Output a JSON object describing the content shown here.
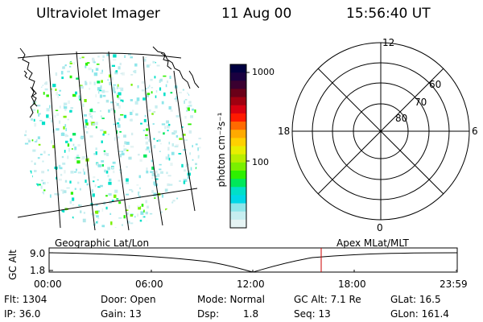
{
  "header": {
    "instrument": "Ultraviolet Imager",
    "date": "11 Aug 00",
    "time": "15:56:40 UT"
  },
  "colorbar": {
    "unit_label": "photon cm⁻²s⁻¹",
    "ticks": [
      "1000",
      "100"
    ],
    "colors": [
      "#000040",
      "#1a0040",
      "#3a0030",
      "#6a0018",
      "#a00010",
      "#d80010",
      "#ff1a00",
      "#ff6a00",
      "#ffaa00",
      "#ffd000",
      "#e8ee00",
      "#b8ee00",
      "#7af000",
      "#2ef000",
      "#00e85a",
      "#00e0c8",
      "#00d8e8",
      "#8ee6ea",
      "#c6eef0",
      "#e6f4f4"
    ]
  },
  "polar": {
    "mlt_labels": [
      "12",
      "18",
      "6",
      "0"
    ],
    "lat_labels": [
      "60",
      "70",
      "80"
    ]
  },
  "timeline": {
    "axis_title": "GC Alt",
    "y_ticks": [
      "9.0",
      "1.8"
    ],
    "x_ticks": [
      "00:00",
      "06:00",
      "12:00",
      "18:00",
      "23:59"
    ],
    "left_label": "Geographic Lat/Lon",
    "right_label": "Apex MLat/MLT",
    "marker_color": "#cc0000"
  },
  "status": {
    "flt": "Flt: 1304",
    "ip": "IP: 36.0",
    "door": "Door: Open",
    "gain": "Gain: 13",
    "mode": "Mode: Normal",
    "dsp": "Dsp:",
    "dsp_value": "1.8",
    "gc_alt": "GC Alt: 7.1 Re",
    "seq": "Seq: 13",
    "glat": "GLat:  16.5",
    "glon": "GLon: 161.4"
  }
}
